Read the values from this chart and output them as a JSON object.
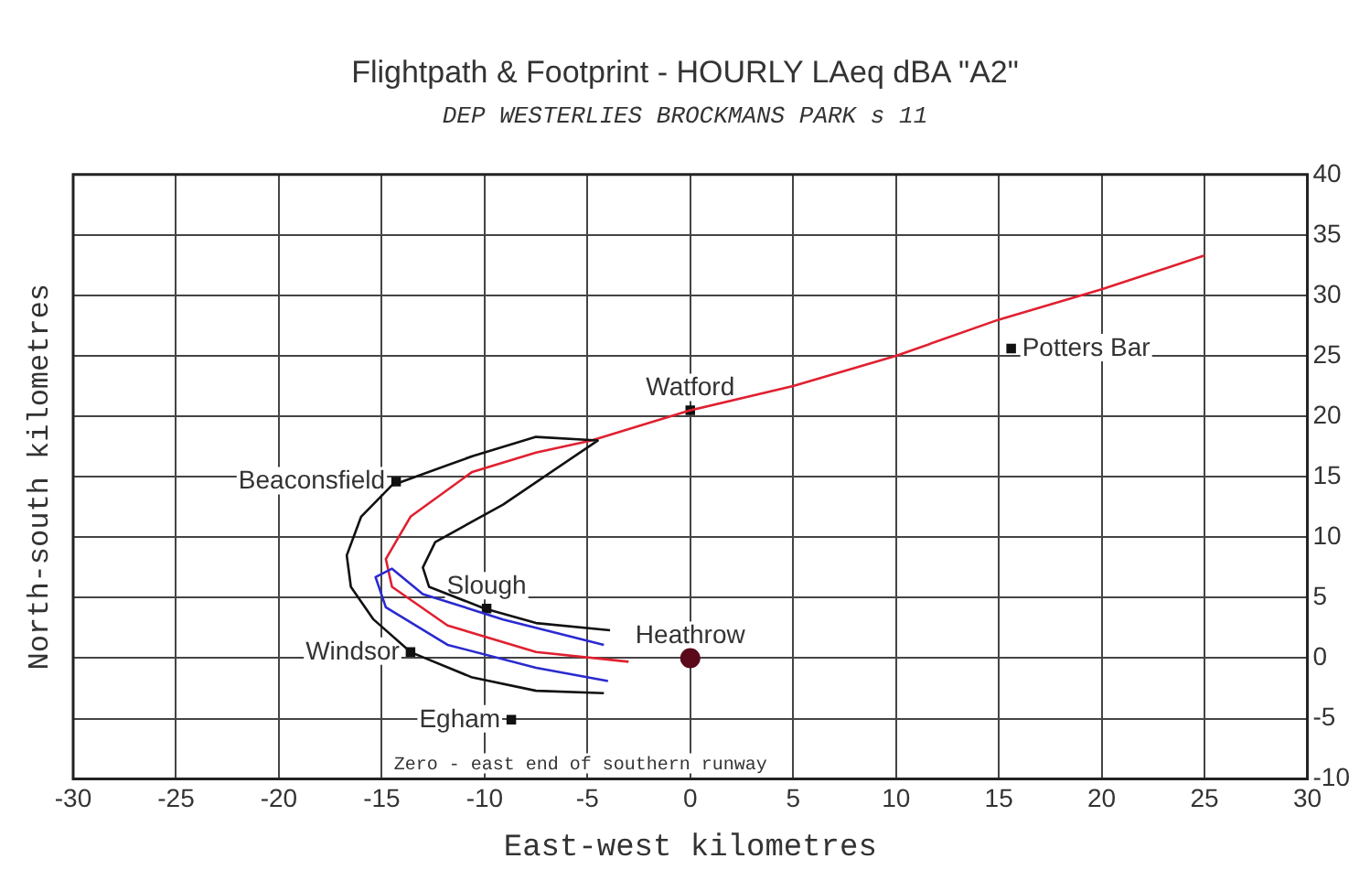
{
  "chart_data": {
    "type": "line",
    "title": "Flightpath & Footprint - HOURLY LAeq dBA \"A2\"",
    "subtitle": "DEP WESTERLIES BROCKMANS PARK s 11",
    "xlabel": "East-west kilometres",
    "ylabel": "North-south kilometres",
    "xlim": [
      -30,
      30
    ],
    "xticks": [
      -30,
      -25,
      -20,
      -15,
      -10,
      -5,
      0,
      5,
      10,
      15,
      20,
      25,
      30
    ],
    "ylim": [
      -10,
      40
    ],
    "yticks": [
      -10,
      -5,
      0,
      5,
      10,
      15,
      20,
      25,
      30,
      35,
      40
    ],
    "grid": true,
    "legend": false,
    "series": [
      {
        "type": "line",
        "color": "#111111",
        "x": [
          -3.9,
          -7.5,
          -10,
          -12.7,
          -13,
          -12.4,
          -9.1,
          -4.5,
          -7.5,
          -10.6,
          -14.5,
          -16,
          -16.7,
          -16.5,
          -15.4,
          -13.6,
          -10.6,
          -7.5,
          -4.2
        ],
        "values": [
          2.3,
          2.9,
          4.1,
          5.9,
          7.5,
          9.6,
          12.7,
          18,
          18.3,
          16.7,
          14.3,
          11.7,
          8.5,
          5.9,
          3.2,
          0.5,
          -1.6,
          -2.7,
          -2.9
        ]
      },
      {
        "type": "line",
        "color": "#2a2ad0",
        "x": [
          -4.2,
          -9.1,
          -13,
          -14.5,
          -15.3,
          -14.8,
          -11.8,
          -7.5,
          -4
        ],
        "values": [
          1.1,
          3.2,
          5.3,
          7.4,
          6.7,
          4.2,
          1.1,
          -0.8,
          -1.9
        ]
      },
      {
        "type": "line",
        "color": "#e02030",
        "x": [
          -3,
          -7.5,
          -11.8,
          -14.5,
          -14.8,
          -13.6,
          -10.6,
          -7.5,
          -4.8,
          0,
          5,
          10,
          15,
          20,
          25
        ],
        "values": [
          -0.3,
          0.5,
          2.7,
          5.9,
          8.2,
          11.7,
          15.4,
          17,
          18,
          20.5,
          22.5,
          25,
          28,
          30.5,
          33.3
        ]
      },
      {
        "type": "scatter",
        "marker": "square",
        "color": "#111111",
        "x": [
          15.6,
          0,
          -14.3,
          -9.9,
          -13.6,
          -8.7
        ],
        "values": [
          25.6,
          20.5,
          14.6,
          4.1,
          0.5,
          -5.1
        ]
      },
      {
        "type": "scatter",
        "marker": "circle",
        "color": "#5a0a1a",
        "x": [
          0
        ],
        "values": [
          0
        ]
      }
    ],
    "annotations": [
      {
        "text": "Potters Bar",
        "x": 15.6,
        "y": 25.6
      },
      {
        "text": "Watford",
        "x": 0,
        "y": 20.5
      },
      {
        "text": "Beaconsfield",
        "x": -14.3,
        "y": 14.6
      },
      {
        "text": "Slough",
        "x": -9.9,
        "y": 4.1
      },
      {
        "text": "Windsor",
        "x": -13.6,
        "y": 0.5
      },
      {
        "text": "Egham",
        "x": -8.7,
        "y": -5.1
      },
      {
        "text": "Heathrow",
        "x": 0,
        "y": 0
      },
      "Zero - east end of southern runway"
    ]
  }
}
